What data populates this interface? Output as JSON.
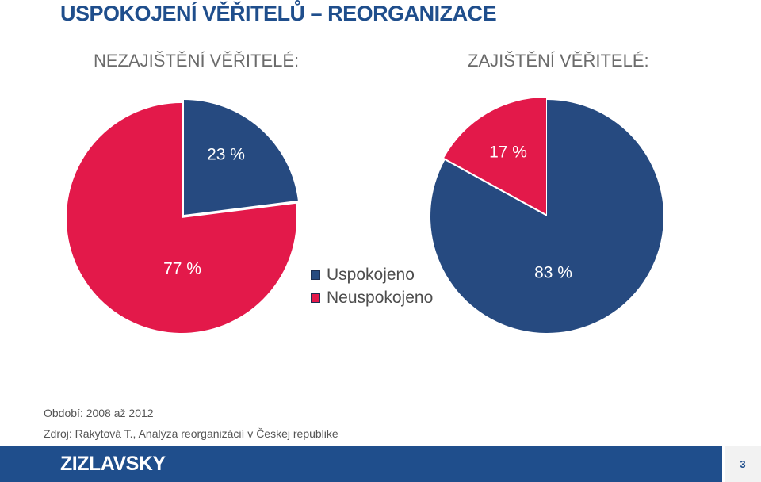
{
  "title": "USPOKOJENÍ VĚŘITELŮ – REORGANIZACE",
  "chart_data": [
    {
      "type": "pie",
      "title": "NEZAJIŠTĚNÍ VĚŘITELÉ:",
      "categories": [
        "Uspokojeno",
        "Neuspokojeno"
      ],
      "values": [
        23,
        77
      ],
      "data_labels": [
        "23 %",
        "77 %"
      ],
      "colors": [
        "#264a80",
        "#e3194a"
      ],
      "legend_position": "right"
    },
    {
      "type": "pie",
      "title": "ZAJIŠTĚNÍ VĚŘITELÉ:",
      "categories": [
        "Uspokojeno",
        "Neuspokojeno"
      ],
      "values": [
        83,
        17
      ],
      "data_labels": [
        "83 %",
        "17 %"
      ],
      "colors": [
        "#264a80",
        "#e3194a"
      ],
      "legend_position": "left"
    }
  ],
  "legend": {
    "items": [
      {
        "label": "Uspokojeno",
        "color": "#264a80"
      },
      {
        "label": "Neuspokojeno",
        "color": "#e3194a"
      }
    ]
  },
  "notes": {
    "period": "Období: 2008 až 2012",
    "source": "Zdroj: Rakytová T., Analýza reorganizácií v Českej republike"
  },
  "footer": {
    "logo": "ZIZLAVSKY",
    "page_number": "3",
    "color": "#1f4e8c"
  }
}
